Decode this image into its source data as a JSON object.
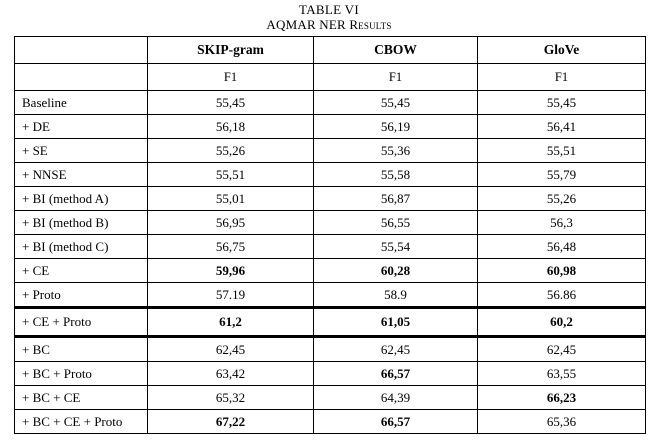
{
  "caption": {
    "number": "TABLE VI",
    "title": "AQMAR NER Results"
  },
  "table": {
    "corner_label": "",
    "column_headers": [
      "SKIP-gram",
      "CBOW",
      "GloVe"
    ],
    "metric_labels": [
      "F1",
      "F1",
      "F1"
    ],
    "rows": [
      {
        "label": "Baseline",
        "values": [
          "55,45",
          "55,45",
          "55,45"
        ],
        "bold": [
          false,
          false,
          false
        ],
        "thick_top": false
      },
      {
        "label": "+ DE",
        "values": [
          "56,18",
          "56,19",
          "56,41"
        ],
        "bold": [
          false,
          false,
          false
        ],
        "thick_top": false
      },
      {
        "label": "+ SE",
        "values": [
          "55,26",
          "55,36",
          "55,51"
        ],
        "bold": [
          false,
          false,
          false
        ],
        "thick_top": false
      },
      {
        "label": "+ NNSE",
        "values": [
          "55,51",
          "55,58",
          "55,79"
        ],
        "bold": [
          false,
          false,
          false
        ],
        "thick_top": false
      },
      {
        "label": "+ BI (method A)",
        "values": [
          "55,01",
          "56,87",
          "55,26"
        ],
        "bold": [
          false,
          false,
          false
        ],
        "thick_top": false
      },
      {
        "label": "+ BI (method B)",
        "values": [
          "56,95",
          "56,55",
          "56,3"
        ],
        "bold": [
          false,
          false,
          false
        ],
        "thick_top": false
      },
      {
        "label": "+ BI (method C)",
        "values": [
          "56,75",
          "55,54",
          "56,48"
        ],
        "bold": [
          false,
          false,
          false
        ],
        "thick_top": false
      },
      {
        "label": "+ CE",
        "values": [
          "59,96",
          "60,28",
          "60,98"
        ],
        "bold": [
          true,
          true,
          true
        ],
        "thick_top": false
      },
      {
        "label": "+ Proto",
        "values": [
          "57.19",
          "58.9",
          "56.86"
        ],
        "bold": [
          false,
          false,
          false
        ],
        "thick_top": false
      },
      {
        "label": "+ CE + Proto",
        "values": [
          "61,2",
          "61,05",
          "60,2"
        ],
        "bold": [
          true,
          true,
          true
        ],
        "thick_top": true,
        "tall": true
      },
      {
        "label": "+ BC",
        "values": [
          "62,45",
          "62,45",
          "62,45"
        ],
        "bold": [
          false,
          false,
          false
        ],
        "thick_top": true
      },
      {
        "label": "+ BC + Proto",
        "values": [
          "63,42",
          "66,57",
          "63,55"
        ],
        "bold": [
          false,
          true,
          false
        ],
        "thick_top": false
      },
      {
        "label": "+ BC + CE",
        "values": [
          "65,32",
          "64,39",
          "66,23"
        ],
        "bold": [
          false,
          false,
          true
        ],
        "thick_top": false
      },
      {
        "label": "+ BC + CE + Proto",
        "values": [
          "67,22",
          "66,57",
          "65,36"
        ],
        "bold": [
          true,
          true,
          false
        ],
        "thick_top": false
      }
    ]
  }
}
